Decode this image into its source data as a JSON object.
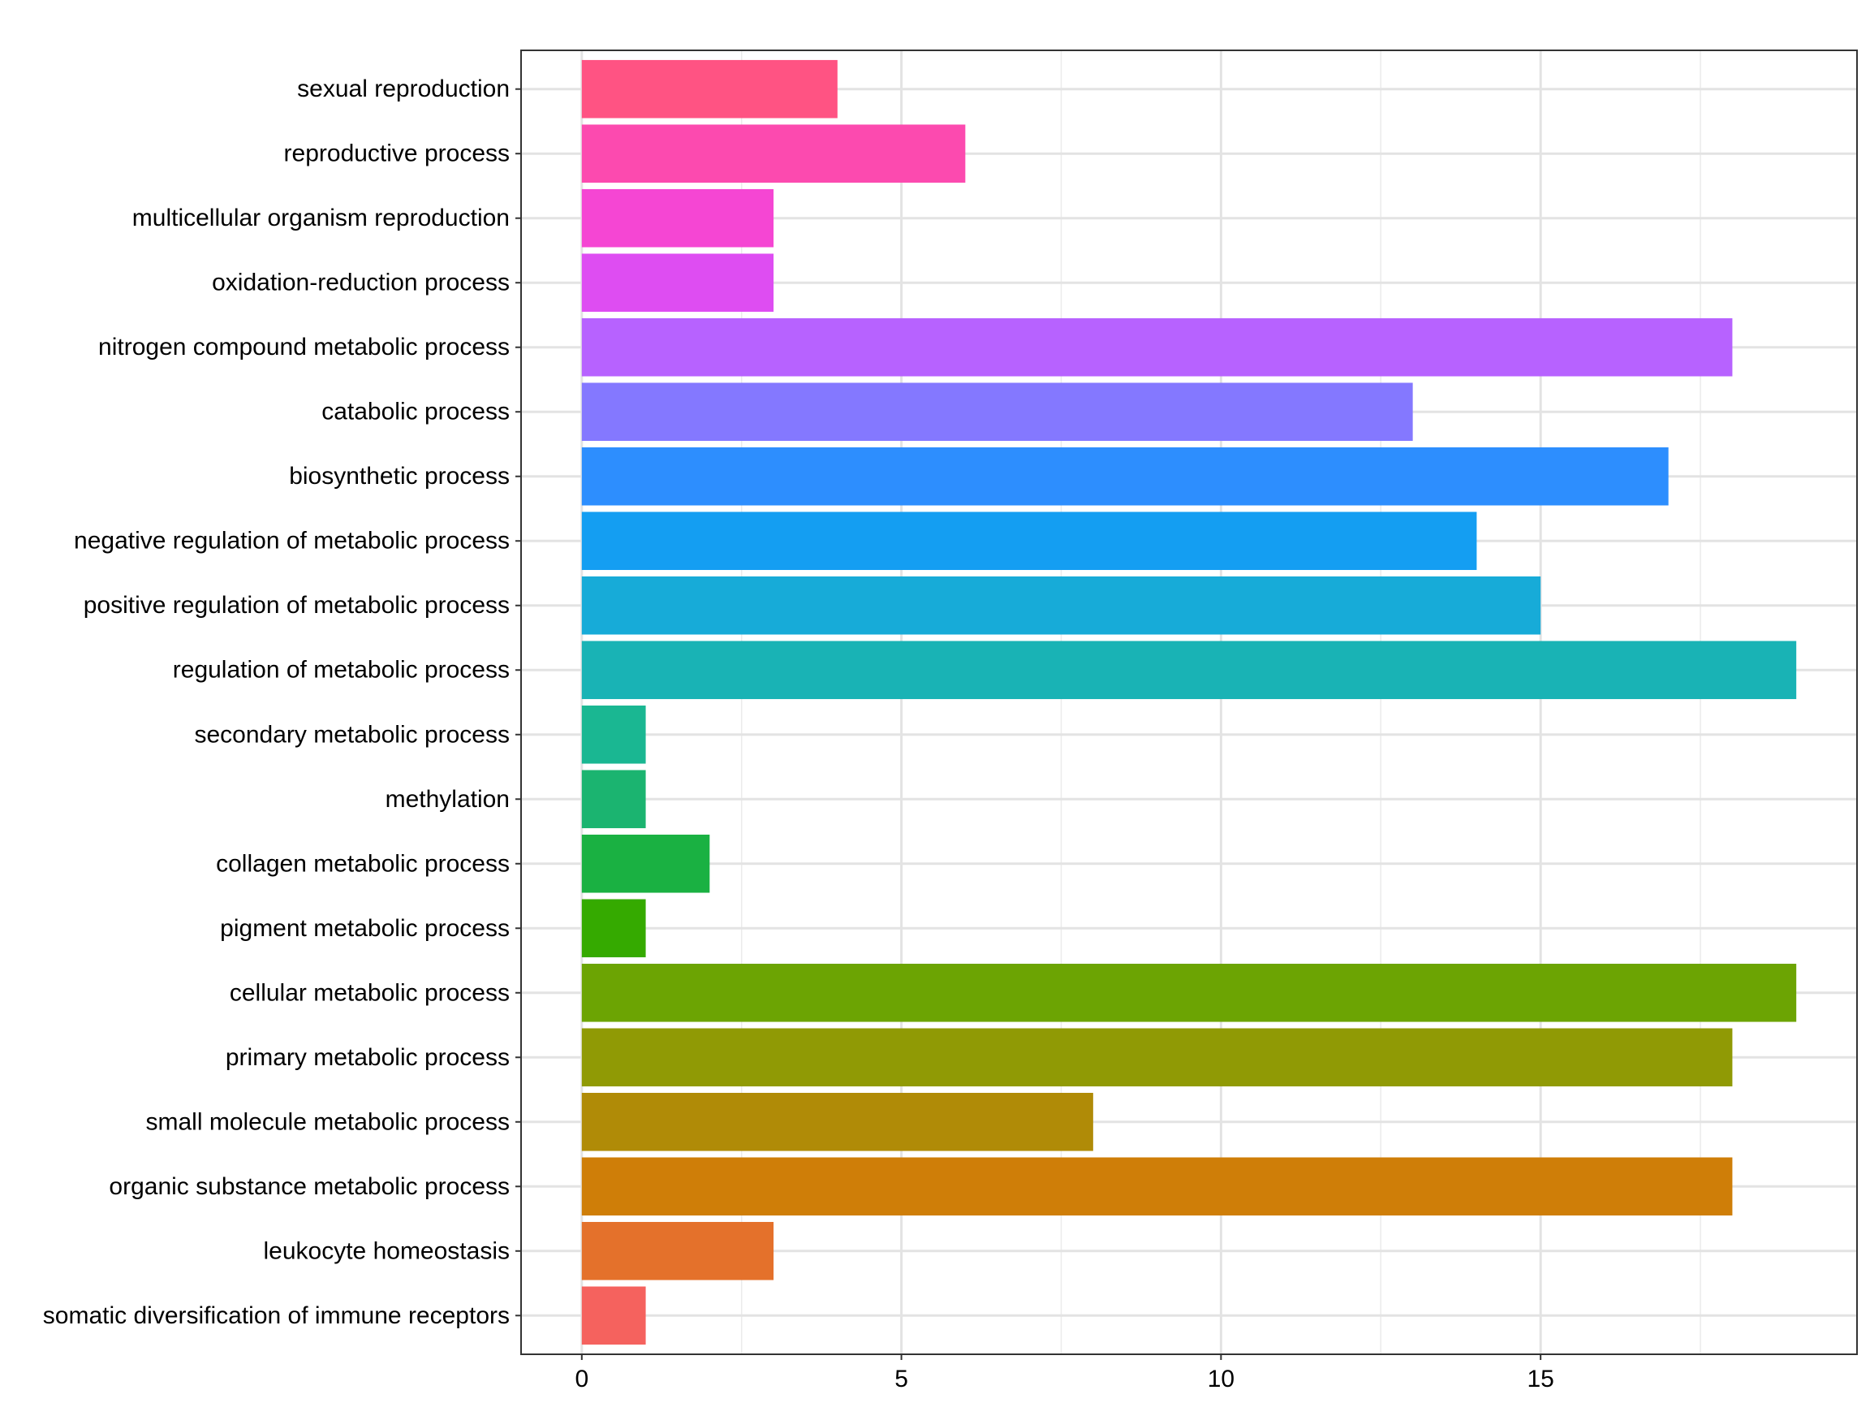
{
  "chart_data": {
    "type": "bar",
    "orientation": "horizontal",
    "title": "",
    "xlabel": "",
    "ylabel": "",
    "xlim": [
      -0.95,
      19.95
    ],
    "x_ticks": [
      0,
      5,
      10,
      15
    ],
    "x_tick_labels": [
      "0",
      "5",
      "10",
      "15"
    ],
    "grid": true,
    "legend": "none",
    "categories": [
      "sexual reproduction",
      "reproductive process",
      "multicellular organism reproduction",
      "oxidation-reduction process",
      "nitrogen compound metabolic process",
      "catabolic process",
      "biosynthetic process",
      "negative regulation of metabolic process",
      "positive regulation of metabolic process",
      "regulation of metabolic process",
      "secondary metabolic process",
      "methylation",
      "collagen metabolic process",
      "pigment metabolic process",
      "cellular metabolic process",
      "primary metabolic process",
      "small molecule metabolic process",
      "organic substance metabolic process",
      "leukocyte homeostasis",
      "somatic diversification of immune receptors"
    ],
    "values": [
      4,
      6,
      3,
      3,
      18,
      13,
      17,
      14,
      15,
      19,
      1,
      1,
      2,
      1,
      19,
      18,
      8,
      18,
      3,
      1
    ],
    "colors": [
      "#FF5383",
      "#FC4AAF",
      "#F546D3",
      "#DE4DF2",
      "#B762FF",
      "#8478FF",
      "#2D8EFE",
      "#149EF2",
      "#17ABD8",
      "#19B3B5",
      "#1AB792",
      "#1BB470",
      "#1AB142",
      "#35AA00",
      "#6CA403",
      "#909A05",
      "#B08B07",
      "#CF7E08",
      "#E4712B",
      "#F5625E"
    ]
  }
}
